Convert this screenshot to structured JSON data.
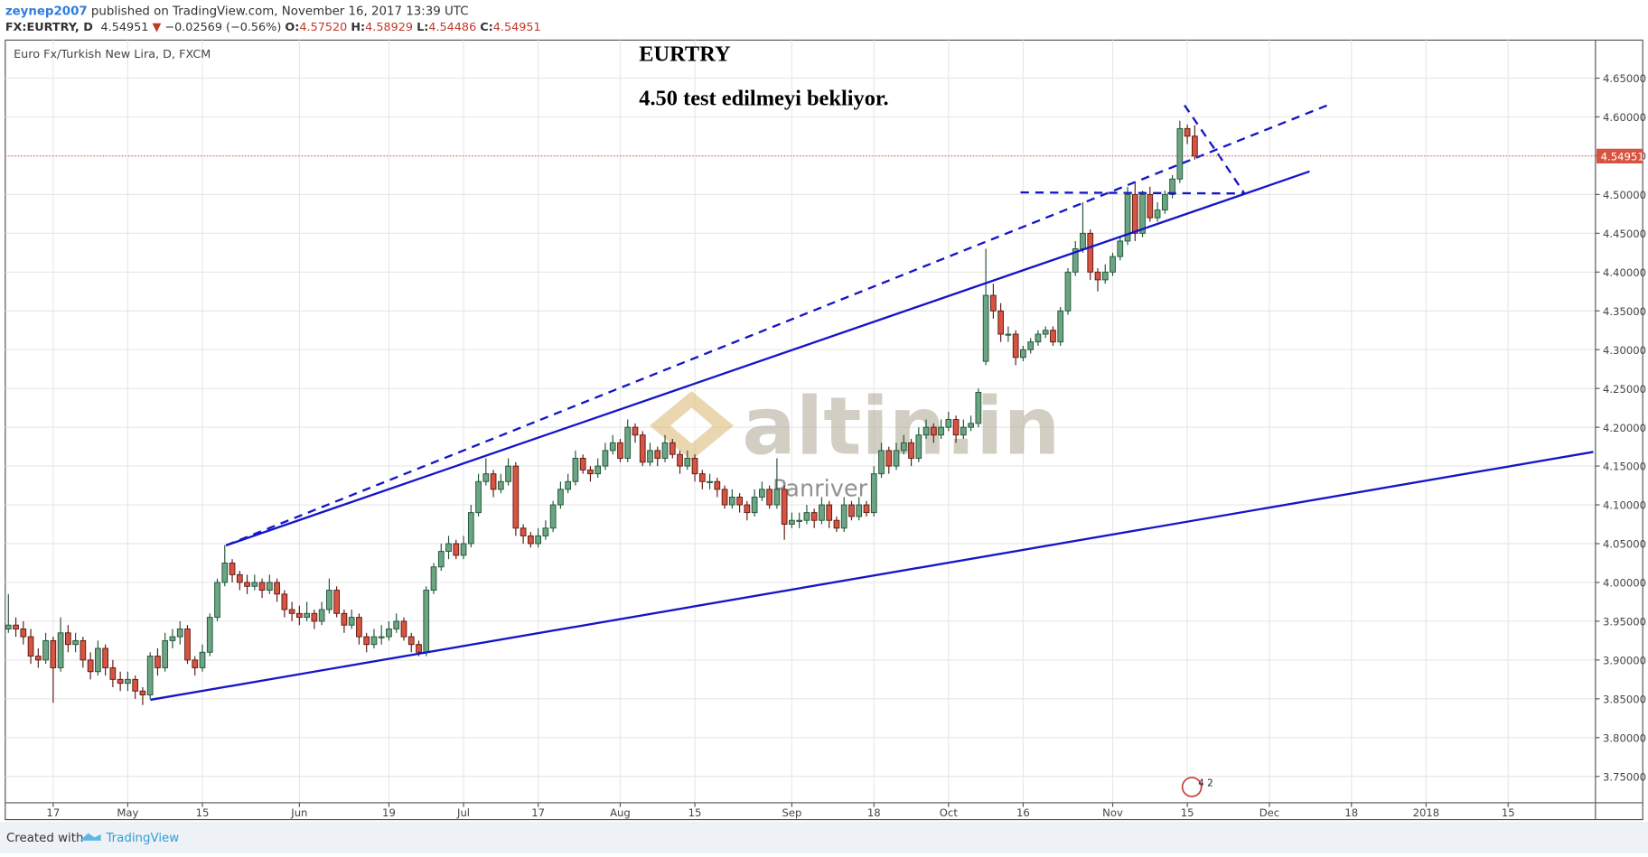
{
  "header": {
    "user": "zeynep2007",
    "published": " published on TradingView.com, November 16, 2017 13:39 UTC",
    "symbol": "FX:EURTRY, D",
    "last": "4.54951",
    "arrow": "▼",
    "change": "−0.02569 (−0.56%)",
    "o_label": "O:",
    "o": "4.57520",
    "h_label": "H:",
    "h": "4.58929",
    "l_label": "L:",
    "l": "4.54486",
    "c_label": "C:",
    "c": "4.54951"
  },
  "footer": {
    "created": "Created with",
    "brand": "TradingView"
  },
  "chart_data": {
    "type": "candlestick",
    "title": "Euro Fx/Turkish New Lira, D, FXCM",
    "annotations": [
      "EURTRY",
      "4.50 test edilmeyi bekliyor."
    ],
    "watermark": "altin.in",
    "watermark_sub": "Panriver",
    "events_badge": "4 2",
    "up_color": "#6ba583",
    "down_color": "#d75442",
    "up_border": "#225437",
    "down_border": "#5b1a13",
    "grid": true,
    "xlim": [
      -0.42,
      212.7
    ],
    "xticks": [
      {
        "value": 6,
        "label": "17"
      },
      {
        "value": 16,
        "label": "May"
      },
      {
        "value": 26,
        "label": "15"
      },
      {
        "value": 39,
        "label": "Jun"
      },
      {
        "value": 51,
        "label": "19"
      },
      {
        "value": 61,
        "label": "Jul"
      },
      {
        "value": 71,
        "label": "17"
      },
      {
        "value": 82,
        "label": "Aug"
      },
      {
        "value": 92,
        "label": "15"
      },
      {
        "value": 105,
        "label": "Sep"
      },
      {
        "value": 116,
        "label": "18"
      },
      {
        "value": 126,
        "label": "Oct"
      },
      {
        "value": 136,
        "label": "16"
      },
      {
        "value": 148,
        "label": "Nov"
      },
      {
        "value": 158,
        "label": "15"
      },
      {
        "value": 169,
        "label": "Dec"
      },
      {
        "value": 180,
        "label": "18"
      },
      {
        "value": 190,
        "label": "2018"
      },
      {
        "value": 201,
        "label": "15"
      }
    ],
    "ylim": [
      3.716,
      4.699
    ],
    "yticks": [
      {
        "value": 3.75,
        "label": "3.75000"
      },
      {
        "value": 3.8,
        "label": "3.80000"
      },
      {
        "value": 3.85,
        "label": "3.85000"
      },
      {
        "value": 3.9,
        "label": "3.90000"
      },
      {
        "value": 3.95,
        "label": "3.95000"
      },
      {
        "value": 4.0,
        "label": "4.00000"
      },
      {
        "value": 4.05,
        "label": "4.05000"
      },
      {
        "value": 4.1,
        "label": "4.10000"
      },
      {
        "value": 4.15,
        "label": "4.15000"
      },
      {
        "value": 4.2,
        "label": "4.20000"
      },
      {
        "value": 4.25,
        "label": "4.25000"
      },
      {
        "value": 4.3,
        "label": "4.30000"
      },
      {
        "value": 4.35,
        "label": "4.35000"
      },
      {
        "value": 4.4,
        "label": "4.40000"
      },
      {
        "value": 4.45,
        "label": "4.45000"
      },
      {
        "value": 4.5,
        "label": "4.50000"
      },
      {
        "value": 4.55,
        "label": "4.55000"
      },
      {
        "value": 4.6,
        "label": "4.60000"
      },
      {
        "value": 4.65,
        "label": "4.65000"
      }
    ],
    "ohlc": [
      [
        3.94,
        3.985,
        3.935,
        3.945
      ],
      [
        3.945,
        3.955,
        3.93,
        3.94
      ],
      [
        3.94,
        3.95,
        3.92,
        3.93
      ],
      [
        3.93,
        3.94,
        3.895,
        3.905
      ],
      [
        3.905,
        3.915,
        3.89,
        3.9
      ],
      [
        3.9,
        3.935,
        3.895,
        3.925
      ],
      [
        3.925,
        3.93,
        3.845,
        3.89
      ],
      [
        3.89,
        3.955,
        3.885,
        3.935
      ],
      [
        3.935,
        3.945,
        3.91,
        3.92
      ],
      [
        3.92,
        3.935,
        3.91,
        3.925
      ],
      [
        3.925,
        3.93,
        3.89,
        3.9
      ],
      [
        3.9,
        3.91,
        3.875,
        3.885
      ],
      [
        3.885,
        3.925,
        3.88,
        3.915
      ],
      [
        3.915,
        3.92,
        3.88,
        3.89
      ],
      [
        3.89,
        3.9,
        3.865,
        3.875
      ],
      [
        3.875,
        3.885,
        3.86,
        3.87
      ],
      [
        3.87,
        3.885,
        3.86,
        3.875
      ],
      [
        3.875,
        3.88,
        3.85,
        3.86
      ],
      [
        3.86,
        3.865,
        3.842,
        3.855
      ],
      [
        3.855,
        3.91,
        3.85,
        3.905
      ],
      [
        3.905,
        3.915,
        3.88,
        3.89
      ],
      [
        3.89,
        3.935,
        3.885,
        3.925
      ],
      [
        3.925,
        3.94,
        3.915,
        3.93
      ],
      [
        3.93,
        3.95,
        3.92,
        3.94
      ],
      [
        3.94,
        3.945,
        3.895,
        3.9
      ],
      [
        3.9,
        3.905,
        3.88,
        3.89
      ],
      [
        3.89,
        3.92,
        3.885,
        3.91
      ],
      [
        3.91,
        3.96,
        3.905,
        3.955
      ],
      [
        3.955,
        4.005,
        3.95,
        4.0
      ],
      [
        4.0,
        4.048,
        3.995,
        4.025
      ],
      [
        4.025,
        4.03,
        4.0,
        4.01
      ],
      [
        4.01,
        4.015,
        3.99,
        4.0
      ],
      [
        4.0,
        4.01,
        3.985,
        3.995
      ],
      [
        3.995,
        4.01,
        3.99,
        4.0
      ],
      [
        4.0,
        4.005,
        3.98,
        3.99
      ],
      [
        3.99,
        4.01,
        3.985,
        4.0
      ],
      [
        4.0,
        4.005,
        3.975,
        3.985
      ],
      [
        3.985,
        3.99,
        3.955,
        3.965
      ],
      [
        3.965,
        3.975,
        3.95,
        3.96
      ],
      [
        3.96,
        3.97,
        3.945,
        3.955
      ],
      [
        3.955,
        3.975,
        3.95,
        3.96
      ],
      [
        3.96,
        3.965,
        3.94,
        3.95
      ],
      [
        3.95,
        3.975,
        3.945,
        3.965
      ],
      [
        3.965,
        4.005,
        3.96,
        3.99
      ],
      [
        3.99,
        3.995,
        3.955,
        3.96
      ],
      [
        3.96,
        3.965,
        3.935,
        3.945
      ],
      [
        3.945,
        3.965,
        3.94,
        3.955
      ],
      [
        3.955,
        3.96,
        3.92,
        3.93
      ],
      [
        3.93,
        3.935,
        3.91,
        3.92
      ],
      [
        3.92,
        3.94,
        3.915,
        3.93
      ],
      [
        3.93,
        3.945,
        3.92,
        3.93
      ],
      [
        3.93,
        3.95,
        3.925,
        3.94
      ],
      [
        3.94,
        3.96,
        3.935,
        3.95
      ],
      [
        3.95,
        3.955,
        3.925,
        3.93
      ],
      [
        3.93,
        3.935,
        3.91,
        3.92
      ],
      [
        3.92,
        3.925,
        3.905,
        3.91
      ],
      [
        3.91,
        3.995,
        3.905,
        3.99
      ],
      [
        3.99,
        4.025,
        3.985,
        4.02
      ],
      [
        4.02,
        4.05,
        4.015,
        4.04
      ],
      [
        4.04,
        4.06,
        4.03,
        4.05
      ],
      [
        4.05,
        4.055,
        4.03,
        4.035
      ],
      [
        4.035,
        4.06,
        4.03,
        4.05
      ],
      [
        4.05,
        4.1,
        4.045,
        4.09
      ],
      [
        4.09,
        4.14,
        4.085,
        4.13
      ],
      [
        4.13,
        4.16,
        4.125,
        4.14
      ],
      [
        4.14,
        4.145,
        4.11,
        4.12
      ],
      [
        4.12,
        4.14,
        4.115,
        4.13
      ],
      [
        4.13,
        4.16,
        4.125,
        4.15
      ],
      [
        4.15,
        4.155,
        4.06,
        4.07
      ],
      [
        4.07,
        4.075,
        4.05,
        4.06
      ],
      [
        4.06,
        4.065,
        4.045,
        4.05
      ],
      [
        4.05,
        4.07,
        4.045,
        4.06
      ],
      [
        4.06,
        4.08,
        4.055,
        4.07
      ],
      [
        4.07,
        4.105,
        4.065,
        4.1
      ],
      [
        4.1,
        4.13,
        4.095,
        4.12
      ],
      [
        4.12,
        4.14,
        4.115,
        4.13
      ],
      [
        4.13,
        4.17,
        4.125,
        4.16
      ],
      [
        4.16,
        4.165,
        4.14,
        4.145
      ],
      [
        4.145,
        4.15,
        4.13,
        4.14
      ],
      [
        4.14,
        4.16,
        4.135,
        4.15
      ],
      [
        4.15,
        4.18,
        4.145,
        4.17
      ],
      [
        4.17,
        4.19,
        4.165,
        4.18
      ],
      [
        4.18,
        4.185,
        4.155,
        4.16
      ],
      [
        4.16,
        4.21,
        4.155,
        4.2
      ],
      [
        4.2,
        4.205,
        4.18,
        4.19
      ],
      [
        4.19,
        4.195,
        4.15,
        4.155
      ],
      [
        4.155,
        4.18,
        4.15,
        4.17
      ],
      [
        4.17,
        4.175,
        4.15,
        4.16
      ],
      [
        4.16,
        4.19,
        4.155,
        4.18
      ],
      [
        4.18,
        4.185,
        4.16,
        4.165
      ],
      [
        4.165,
        4.17,
        4.14,
        4.15
      ],
      [
        4.15,
        4.17,
        4.145,
        4.16
      ],
      [
        4.16,
        4.165,
        4.13,
        4.14
      ],
      [
        4.14,
        4.145,
        4.12,
        4.13
      ],
      [
        4.13,
        4.14,
        4.12,
        4.13
      ],
      [
        4.13,
        4.135,
        4.11,
        4.12
      ],
      [
        4.12,
        4.125,
        4.095,
        4.1
      ],
      [
        4.1,
        4.12,
        4.095,
        4.11
      ],
      [
        4.11,
        4.115,
        4.09,
        4.1
      ],
      [
        4.1,
        4.105,
        4.08,
        4.09
      ],
      [
        4.09,
        4.12,
        4.085,
        4.11
      ],
      [
        4.11,
        4.13,
        4.105,
        4.12
      ],
      [
        4.12,
        4.125,
        4.095,
        4.1
      ],
      [
        4.1,
        4.16,
        4.095,
        4.12
      ],
      [
        4.12,
        4.125,
        4.055,
        4.075
      ],
      [
        4.075,
        4.09,
        4.07,
        4.08
      ],
      [
        4.08,
        4.09,
        4.07,
        4.08
      ],
      [
        4.08,
        4.1,
        4.075,
        4.09
      ],
      [
        4.09,
        4.095,
        4.07,
        4.08
      ],
      [
        4.08,
        4.11,
        4.075,
        4.1
      ],
      [
        4.1,
        4.105,
        4.07,
        4.08
      ],
      [
        4.08,
        4.085,
        4.065,
        4.07
      ],
      [
        4.07,
        4.11,
        4.065,
        4.1
      ],
      [
        4.1,
        4.105,
        4.08,
        4.085
      ],
      [
        4.085,
        4.11,
        4.08,
        4.1
      ],
      [
        4.1,
        4.105,
        4.085,
        4.09
      ],
      [
        4.09,
        4.15,
        4.085,
        4.14
      ],
      [
        4.14,
        4.18,
        4.135,
        4.17
      ],
      [
        4.17,
        4.175,
        4.14,
        4.15
      ],
      [
        4.15,
        4.18,
        4.145,
        4.17
      ],
      [
        4.17,
        4.19,
        4.165,
        4.18
      ],
      [
        4.18,
        4.185,
        4.15,
        4.16
      ],
      [
        4.16,
        4.2,
        4.155,
        4.19
      ],
      [
        4.19,
        4.21,
        4.185,
        4.2
      ],
      [
        4.2,
        4.205,
        4.18,
        4.19
      ],
      [
        4.19,
        4.21,
        4.185,
        4.2
      ],
      [
        4.2,
        4.22,
        4.195,
        4.21
      ],
      [
        4.21,
        4.215,
        4.18,
        4.19
      ],
      [
        4.19,
        4.21,
        4.185,
        4.2
      ],
      [
        4.2,
        4.215,
        4.195,
        4.205
      ],
      [
        4.205,
        4.25,
        4.2,
        4.245
      ],
      [
        4.285,
        4.43,
        4.28,
        4.37
      ],
      [
        4.37,
        4.385,
        4.34,
        4.35
      ],
      [
        4.35,
        4.36,
        4.31,
        4.32
      ],
      [
        4.32,
        4.33,
        4.31,
        4.32
      ],
      [
        4.32,
        4.325,
        4.28,
        4.29
      ],
      [
        4.29,
        4.305,
        4.285,
        4.3
      ],
      [
        4.3,
        4.315,
        4.295,
        4.31
      ],
      [
        4.31,
        4.325,
        4.305,
        4.32
      ],
      [
        4.32,
        4.33,
        4.315,
        4.325
      ],
      [
        4.325,
        4.33,
        4.305,
        4.31
      ],
      [
        4.31,
        4.355,
        4.305,
        4.35
      ],
      [
        4.35,
        4.405,
        4.345,
        4.4
      ],
      [
        4.4,
        4.44,
        4.395,
        4.43
      ],
      [
        4.43,
        4.49,
        4.425,
        4.45
      ],
      [
        4.45,
        4.455,
        4.39,
        4.4
      ],
      [
        4.4,
        4.405,
        4.375,
        4.39
      ],
      [
        4.39,
        4.41,
        4.385,
        4.4
      ],
      [
        4.4,
        4.425,
        4.395,
        4.42
      ],
      [
        4.42,
        4.445,
        4.415,
        4.44
      ],
      [
        4.44,
        4.51,
        4.435,
        4.5
      ],
      [
        4.5,
        4.515,
        4.44,
        4.45
      ],
      [
        4.45,
        4.505,
        4.445,
        4.5
      ],
      [
        4.5,
        4.51,
        4.465,
        4.47
      ],
      [
        4.47,
        4.49,
        4.465,
        4.48
      ],
      [
        4.48,
        4.505,
        4.475,
        4.5
      ],
      [
        4.5,
        4.525,
        4.495,
        4.52
      ],
      [
        4.52,
        4.595,
        4.515,
        4.585
      ],
      [
        4.585,
        4.59,
        4.565,
        4.5752
      ],
      [
        4.5752,
        4.58929,
        4.54486,
        4.54951
      ]
    ]
  }
}
